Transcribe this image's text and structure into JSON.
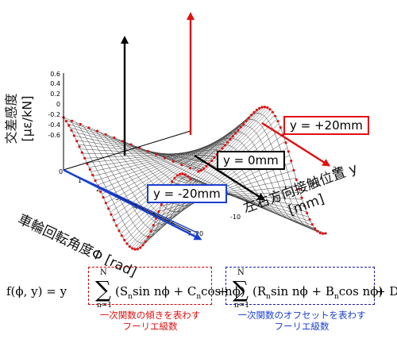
{
  "plot": {
    "z_axis_label": "交差感度 [με/kN]",
    "z_ticks": [
      "0.6",
      "0.4",
      "0.2",
      "0",
      "-0.2",
      "-0.4",
      "-0.6"
    ],
    "phi_axis_label": "車輪回転角度Φ [rad]",
    "phi_ticks": [
      "0",
      "1",
      "2",
      "3",
      "4",
      "5",
      "6",
      "7"
    ],
    "y_axis_label_line1": "左右方向接触位置 y",
    "y_axis_label_line2": "[mm]",
    "y_ticks": [
      "-20",
      "-10",
      "0",
      "10",
      "20"
    ]
  },
  "callouts": {
    "plus20": "y = +20mm",
    "zero": "y = 0mm",
    "minus20": "y = -20mm"
  },
  "formula": {
    "lhs": "f(ϕ, y) = y",
    "sum_upper": "N",
    "sum_lower": "n=1",
    "term1": "(S",
    "term1b": "sin nϕ + C",
    "term1c": "cos nϕ)",
    "plus": "+",
    "term2": "(R",
    "term2b": "sin nϕ + B",
    "term2c": "cos nϕ)",
    "tail": "+ D",
    "sub_n": "n"
  },
  "notes": {
    "red_line1": "一次関数の傾きを表わす",
    "red_line2": "フーリエ級数",
    "blue_line1": "一次関数のオフセットを表わす",
    "blue_line2": "フーリエ級数"
  },
  "colors": {
    "red": "#e01010",
    "blue": "#1a3fd0",
    "black": "#000000"
  }
}
